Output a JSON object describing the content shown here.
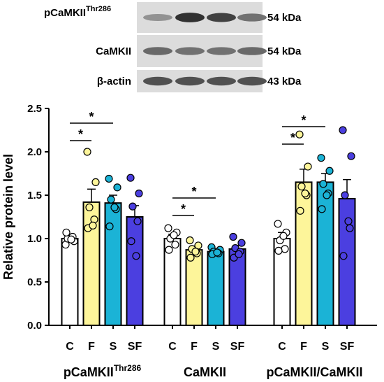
{
  "blots": {
    "rows": [
      {
        "label_main": "pCaMKII",
        "label_sup": "Thr286",
        "kda": "54 kDa",
        "bands": [
          0.35,
          0.95,
          0.85,
          0.55
        ]
      },
      {
        "label_main": "CaMKII",
        "label_sup": "",
        "kda": "54 kDa",
        "bands": [
          0.6,
          0.55,
          0.55,
          0.6
        ]
      },
      {
        "label_main": "β-actin",
        "label_sup": "",
        "kda": "43 kDa",
        "bands": [
          0.75,
          0.75,
          0.75,
          0.75
        ]
      }
    ]
  },
  "chart_data": {
    "type": "bar",
    "ylabel": "Relative protein level",
    "ylim": [
      0,
      2.5
    ],
    "yticks": [
      "0.0",
      "0.5",
      "1.0",
      "1.5",
      "2.0",
      "2.5"
    ],
    "categories": [
      "C",
      "F",
      "S",
      "SF"
    ],
    "colors": {
      "C": "#ffffff",
      "F": "#fdf59a",
      "S": "#1bb3d6",
      "SF": "#4b3fe0"
    },
    "groups": [
      {
        "label_main": "pCaMKII",
        "label_sup": "Thr286",
        "bars": [
          {
            "cat": "C",
            "value": 1.0,
            "sem": 0.04,
            "points": [
              0.93,
              0.97,
              1.0,
              1.02,
              1.07,
              0.99
            ]
          },
          {
            "cat": "F",
            "value": 1.42,
            "sem": 0.15,
            "points": [
              2.0,
              1.65,
              1.36,
              1.22,
              1.12,
              1.15
            ]
          },
          {
            "cat": "S",
            "value": 1.41,
            "sem": 0.09,
            "points": [
              1.69,
              1.59,
              1.45,
              1.34,
              1.14,
              1.36
            ]
          },
          {
            "cat": "SF",
            "value": 1.25,
            "sem": 0.13,
            "points": [
              1.7,
              1.52,
              1.37,
              1.2,
              0.97,
              0.8
            ]
          }
        ],
        "sig": [
          {
            "from": 0,
            "to": 1,
            "label": "*"
          },
          {
            "from": 0,
            "to": 2,
            "label": "*"
          }
        ]
      },
      {
        "label_main": "CaMKII",
        "label_sup": "",
        "bars": [
          {
            "cat": "C",
            "value": 1.0,
            "sem": 0.05,
            "points": [
              1.12,
              1.07,
              1.0,
              0.93,
              0.87,
              1.04
            ]
          },
          {
            "cat": "F",
            "value": 0.87,
            "sem": 0.03,
            "points": [
              0.98,
              0.92,
              0.88,
              0.83,
              0.78,
              0.85
            ]
          },
          {
            "cat": "S",
            "value": 0.85,
            "sem": 0.02,
            "points": [
              0.9,
              0.87,
              0.85,
              0.83,
              0.82,
              0.84
            ]
          },
          {
            "cat": "SF",
            "value": 0.88,
            "sem": 0.04,
            "points": [
              1.02,
              0.95,
              0.89,
              0.85,
              0.78,
              0.82
            ]
          }
        ],
        "sig": [
          {
            "from": 0,
            "to": 1,
            "label": "*"
          },
          {
            "from": 0,
            "to": 2,
            "label": "*"
          }
        ]
      },
      {
        "label_main": "pCaMKII/CaMKII",
        "label_sup": "",
        "bars": [
          {
            "cat": "C",
            "value": 1.0,
            "sem": 0.07,
            "points": [
              1.17,
              1.07,
              0.98,
              0.88,
              0.86,
              1.03
            ]
          },
          {
            "cat": "F",
            "value": 1.65,
            "sem": 0.15,
            "points": [
              2.2,
              1.83,
              1.6,
              1.5,
              1.32,
              1.52
            ]
          },
          {
            "cat": "S",
            "value": 1.65,
            "sem": 0.1,
            "points": [
              1.93,
              1.78,
              1.63,
              1.52,
              1.34,
              1.5
            ]
          },
          {
            "cat": "SF",
            "value": 1.46,
            "sem": 0.22,
            "points": [
              2.25,
              1.95,
              1.5,
              1.12,
              0.8,
              1.2
            ]
          }
        ],
        "sig": [
          {
            "from": 0,
            "to": 1,
            "label": "*"
          },
          {
            "from": 0,
            "to": 2,
            "label": "*"
          }
        ]
      }
    ]
  }
}
